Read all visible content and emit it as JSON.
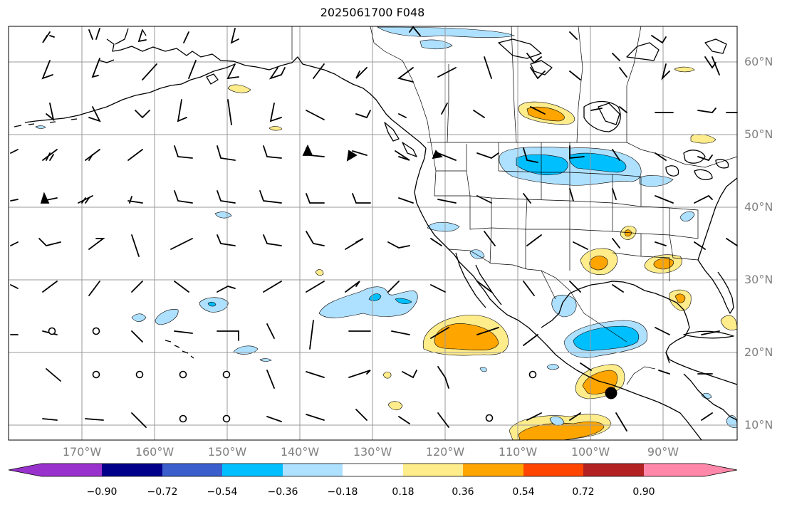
{
  "title": "2025061700 F048",
  "lat_labels": [
    "60°N",
    "50°N",
    "40°N",
    "30°N",
    "20°N",
    "10°N"
  ],
  "lon_labels": [
    "170°W",
    "160°W",
    "150°W",
    "140°W",
    "130°W",
    "120°W",
    "110°W",
    "100°W",
    "90°W"
  ],
  "colorbar": {
    "tick_labels": [
      "−0.90",
      "−0.72",
      "−0.54",
      "−0.36",
      "−0.18",
      "0.18",
      "0.36",
      "0.54",
      "0.72",
      "0.90"
    ],
    "colors": [
      "#9932cc",
      "#00008b",
      "#3a5fcd",
      "#00bfff",
      "#aee0ff",
      "#ffffff",
      "#ffec8b",
      "#ffa500",
      "#ff4500",
      "#b22222",
      "#ff88aa"
    ]
  },
  "colors": {
    "grid": "#9a9a9a",
    "coast": "#000000",
    "border": "#000000",
    "axis_label": "#808080"
  },
  "marker": {
    "type": "storm-center",
    "color": "#000000"
  }
}
